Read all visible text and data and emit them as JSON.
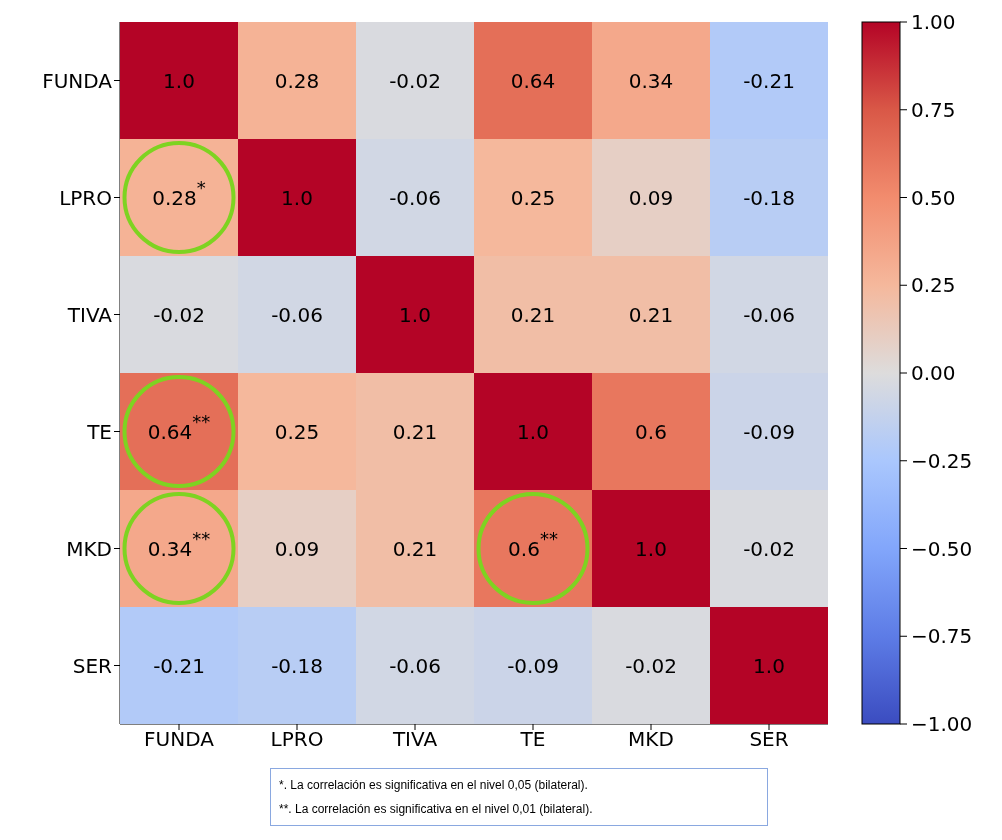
{
  "chart_data": {
    "type": "heatmap",
    "categories": [
      "FUNDA",
      "LPRO",
      "TIVA",
      "TE",
      "MKD",
      "SER"
    ],
    "y_categories": [
      "FUNDA",
      "LPRO",
      "TIVA",
      "TE",
      "MKD",
      "SER"
    ],
    "cells": [
      [
        1.0,
        0.28,
        -0.02,
        0.64,
        0.34,
        -0.21
      ],
      [
        0.28,
        1.0,
        -0.06,
        0.25,
        0.09,
        -0.18
      ],
      [
        -0.02,
        -0.06,
        1.0,
        0.21,
        0.21,
        -0.06
      ],
      [
        0.64,
        0.25,
        0.21,
        1.0,
        0.6,
        -0.09
      ],
      [
        0.34,
        0.09,
        0.21,
        0.6,
        1.0,
        -0.02
      ],
      [
        -0.21,
        -0.18,
        -0.06,
        -0.09,
        -0.02,
        1.0
      ]
    ],
    "cell_labels": [
      [
        "1.0",
        "0.28",
        "-0.02",
        "0.64",
        "0.34",
        "-0.21"
      ],
      [
        "0.28$^{*}$",
        "1.0",
        "-0.06",
        "0.25",
        "0.09",
        "-0.18"
      ],
      [
        "-0.02",
        "-0.06",
        "1.0",
        "0.21",
        "0.21",
        "-0.06"
      ],
      [
        "0.64$^{**}$",
        "0.25",
        "0.21",
        "1.0",
        "0.6",
        "-0.09"
      ],
      [
        "0.34$^{**}$",
        "0.09",
        "0.21",
        "0.6$^{**}$",
        "1.0",
        "-0.02"
      ],
      [
        "-0.21",
        "-0.18",
        "-0.06",
        "-0.09",
        "-0.02",
        "1.0"
      ]
    ],
    "clim": [
      -1,
      1
    ],
    "cticks": [
      {
        "value": -1,
        "label": "−1.00"
      },
      {
        "value": -0.75,
        "label": "−0.75"
      },
      {
        "value": -0.5,
        "label": "−0.50"
      },
      {
        "value": -0.25,
        "label": "−0.25"
      },
      {
        "value": 0,
        "label": "0.00"
      },
      {
        "value": 0.25,
        "label": "0.25"
      },
      {
        "value": 0.5,
        "label": "0.50"
      },
      {
        "value": 0.75,
        "label": "0.75"
      },
      {
        "value": 1,
        "label": "1.00"
      }
    ],
    "annotations": [
      "*. La correlación es significativa en el nivel 0,05 (bilateral).",
      "**. La correlación es significativa en el nivel 0,01 (bilateral)."
    ]
  }
}
